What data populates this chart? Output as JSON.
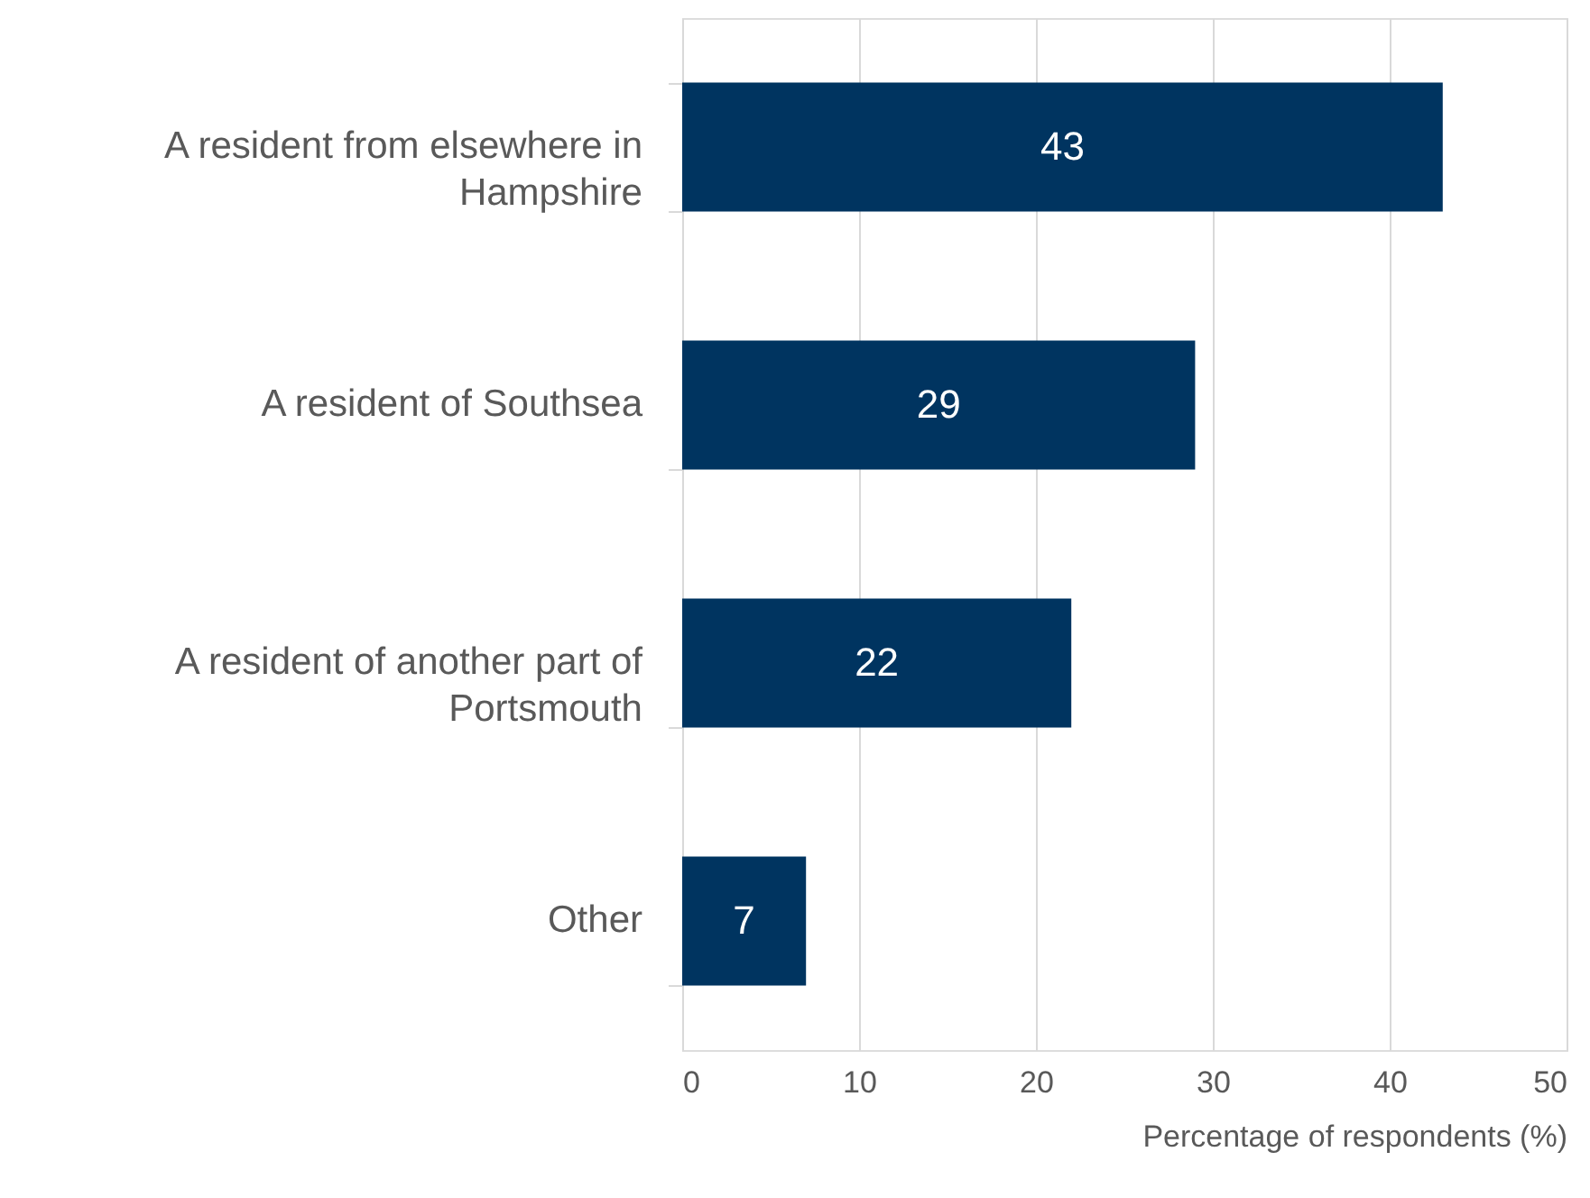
{
  "chart_data": {
    "type": "bar",
    "orientation": "horizontal",
    "categories": [
      "A resident from elsewhere in Hampshire",
      "A resident of Southsea",
      "A resident of another part of Portsmouth",
      "Other"
    ],
    "values": [
      43,
      29,
      22,
      7
    ],
    "color": "#003460",
    "xlabel": "Percentage of respondents (%)",
    "xlim": [
      0,
      50
    ],
    "xticks": [
      0,
      10,
      20,
      30,
      40,
      50
    ],
    "grid": "x",
    "data_labels": true
  }
}
